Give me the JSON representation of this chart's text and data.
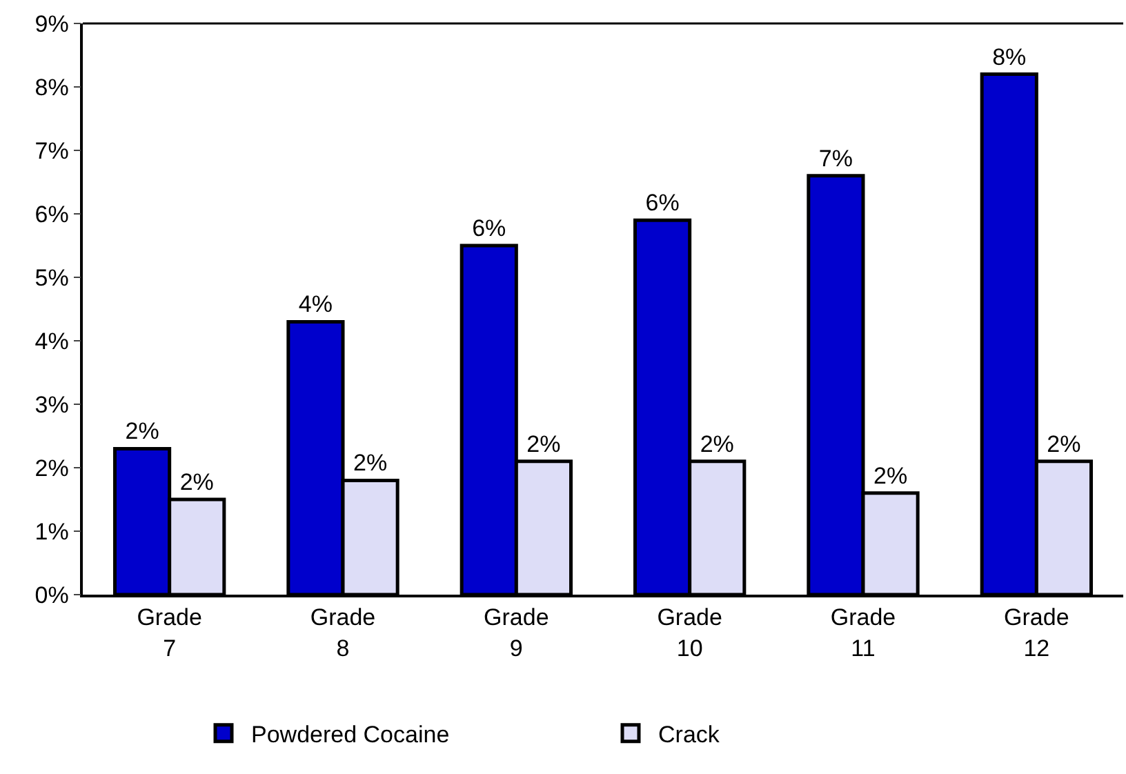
{
  "chart_data": {
    "type": "bar",
    "categories": [
      "Grade 7",
      "Grade 8",
      "Grade 9",
      "Grade 10",
      "Grade 11",
      "Grade 12"
    ],
    "series": [
      {
        "name": "Powdered Cocaine",
        "color": "#0000cc",
        "values": [
          2.3,
          4.3,
          5.5,
          5.9,
          6.6,
          8.2
        ],
        "value_labels": [
          "2%",
          "4%",
          "6%",
          "6%",
          "7%",
          "8%"
        ]
      },
      {
        "name": "Crack",
        "color": "#ddddf7",
        "values": [
          1.5,
          1.8,
          2.1,
          2.1,
          1.6,
          2.1
        ],
        "value_labels": [
          "2%",
          "2%",
          "2%",
          "2%",
          "2%",
          "2%"
        ]
      }
    ],
    "ylim": [
      0,
      9
    ],
    "yticks": [
      {
        "value": 0,
        "label": "0%"
      },
      {
        "value": 1,
        "label": "1%"
      },
      {
        "value": 2,
        "label": "2%"
      },
      {
        "value": 3,
        "label": "3%"
      },
      {
        "value": 4,
        "label": "4%"
      },
      {
        "value": 5,
        "label": "5%"
      },
      {
        "value": 6,
        "label": "6%"
      },
      {
        "value": 7,
        "label": "7%"
      },
      {
        "value": 8,
        "label": "8%"
      },
      {
        "value": 9,
        "label": "9%"
      }
    ],
    "legend": "bottom"
  }
}
